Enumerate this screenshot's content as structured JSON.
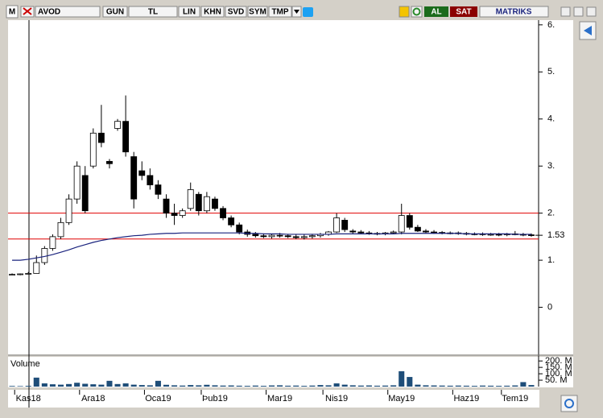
{
  "toolbar": {
    "logo": "M",
    "symbol": "AVOD",
    "buttons": [
      "GUN",
      "TL",
      "LIN",
      "KHN",
      "SVD",
      "SYM",
      "TMP"
    ],
    "buy": "AL",
    "sell": "SAT",
    "brand": "MATRIKS"
  },
  "chart_data": {
    "type": "candlestick",
    "open": [
      0.7,
      0.7,
      0.71,
      0.72,
      0.95,
      1.25,
      1.5,
      1.8,
      2.3,
      2.8,
      3.0,
      3.7,
      3.1,
      3.8,
      3.95,
      3.2,
      2.9,
      2.8,
      2.6,
      2.3,
      2.0,
      1.95,
      2.1,
      2.4,
      2.05,
      2.3,
      2.1,
      1.9,
      1.75,
      1.6,
      1.55,
      1.52,
      1.5,
      1.53,
      1.52,
      1.5,
      1.48,
      1.5,
      1.52,
      1.55,
      1.6,
      1.85,
      1.62,
      1.6,
      1.58,
      1.57,
      1.56,
      1.58,
      1.6,
      1.95,
      1.7,
      1.62,
      1.6,
      1.59,
      1.58,
      1.58,
      1.57,
      1.56,
      1.56,
      1.55,
      1.55,
      1.54,
      1.56,
      1.55,
      1.54
    ],
    "high": [
      0.72,
      0.72,
      0.75,
      1.1,
      1.3,
      1.55,
      1.9,
      2.4,
      3.1,
      3.0,
      3.8,
      4.3,
      3.15,
      4.0,
      4.5,
      3.3,
      3.1,
      2.95,
      2.7,
      2.4,
      2.2,
      2.1,
      2.65,
      2.45,
      2.45,
      2.35,
      2.15,
      1.95,
      1.8,
      1.65,
      1.6,
      1.57,
      1.56,
      1.58,
      1.56,
      1.55,
      1.54,
      1.56,
      1.58,
      1.62,
      2.0,
      1.9,
      1.66,
      1.64,
      1.62,
      1.6,
      1.6,
      1.63,
      2.2,
      2.0,
      1.75,
      1.66,
      1.64,
      1.62,
      1.61,
      1.61,
      1.6,
      1.59,
      1.59,
      1.58,
      1.58,
      1.58,
      1.62,
      1.58,
      1.57
    ],
    "low": [
      0.68,
      0.68,
      0.7,
      0.72,
      0.9,
      1.2,
      1.45,
      1.75,
      2.2,
      2.0,
      2.95,
      3.4,
      2.95,
      3.75,
      3.2,
      2.1,
      2.7,
      2.5,
      2.3,
      1.9,
      1.75,
      1.9,
      2.05,
      1.95,
      2.0,
      2.05,
      1.85,
      1.7,
      1.55,
      1.5,
      1.48,
      1.47,
      1.46,
      1.48,
      1.47,
      1.45,
      1.44,
      1.46,
      1.48,
      1.52,
      1.58,
      1.6,
      1.56,
      1.55,
      1.54,
      1.53,
      1.53,
      1.55,
      1.55,
      1.65,
      1.6,
      1.57,
      1.56,
      1.55,
      1.55,
      1.54,
      1.53,
      1.53,
      1.52,
      1.52,
      1.51,
      1.51,
      1.53,
      1.51,
      1.5
    ],
    "close": [
      0.7,
      0.71,
      0.72,
      0.95,
      1.25,
      1.5,
      1.8,
      2.3,
      3.0,
      2.05,
      3.7,
      3.5,
      3.05,
      3.95,
      3.3,
      2.3,
      2.8,
      2.6,
      2.4,
      2.0,
      1.95,
      2.05,
      2.5,
      2.05,
      2.35,
      2.1,
      1.9,
      1.75,
      1.6,
      1.55,
      1.52,
      1.5,
      1.53,
      1.52,
      1.5,
      1.48,
      1.5,
      1.52,
      1.55,
      1.6,
      1.9,
      1.65,
      1.6,
      1.58,
      1.57,
      1.56,
      1.58,
      1.6,
      1.95,
      1.7,
      1.62,
      1.6,
      1.59,
      1.58,
      1.58,
      1.57,
      1.56,
      1.56,
      1.55,
      1.55,
      1.54,
      1.56,
      1.55,
      1.54,
      1.53
    ],
    "moving_average": [
      1.0,
      1.0,
      1.02,
      1.05,
      1.08,
      1.12,
      1.17,
      1.22,
      1.28,
      1.33,
      1.38,
      1.42,
      1.45,
      1.48,
      1.5,
      1.52,
      1.53,
      1.55,
      1.56,
      1.57,
      1.57,
      1.58,
      1.58,
      1.58,
      1.58,
      1.58,
      1.58,
      1.58,
      1.58,
      1.57,
      1.57,
      1.56,
      1.56,
      1.56,
      1.55,
      1.55,
      1.55,
      1.55,
      1.55,
      1.55,
      1.56,
      1.56,
      1.56,
      1.56,
      1.56,
      1.56,
      1.56,
      1.56,
      1.57,
      1.57,
      1.57,
      1.57,
      1.57,
      1.57,
      1.57,
      1.57,
      1.56,
      1.56,
      1.56,
      1.56,
      1.56,
      1.56,
      1.55,
      1.55,
      1.55
    ],
    "volume": [
      5,
      4,
      6,
      70,
      25,
      18,
      15,
      20,
      30,
      22,
      18,
      15,
      45,
      20,
      25,
      15,
      12,
      10,
      45,
      14,
      10,
      8,
      12,
      10,
      14,
      10,
      8,
      9,
      7,
      6,
      8,
      6,
      9,
      10,
      7,
      8,
      6,
      8,
      12,
      10,
      25,
      15,
      10,
      8,
      9,
      7,
      8,
      10,
      120,
      75,
      15,
      10,
      9,
      8,
      7,
      8,
      7,
      6,
      8,
      7,
      6,
      7,
      9,
      35,
      12
    ],
    "volume_label": "Volume",
    "ylim": [
      -1.0,
      6.1
    ],
    "yticks": [
      {
        "value": 6,
        "label": "6."
      },
      {
        "value": 5,
        "label": "5."
      },
      {
        "value": 4,
        "label": "4."
      },
      {
        "value": 3,
        "label": "3."
      },
      {
        "value": 2,
        "label": "2."
      },
      {
        "value": 1,
        "label": "1."
      },
      0
    ],
    "volume_ylim": [
      0,
      220
    ],
    "volume_yticks": [
      {
        "value": 200,
        "label": "200. M"
      },
      {
        "value": 150,
        "label": "150. M"
      },
      {
        "value": 100,
        "label": "100. M"
      },
      {
        "value": 50,
        "label": "50. M"
      }
    ],
    "xticks": [
      {
        "value": 2,
        "label": "Kas18"
      },
      {
        "value": 10,
        "label": "Ara18"
      },
      {
        "value": 18,
        "label": "Oca19"
      },
      {
        "value": 25,
        "label": "Þub19"
      },
      {
        "value": 33,
        "label": "Mar19"
      },
      {
        "value": 40,
        "label": "Nis19"
      },
      {
        "value": 48,
        "label": "May19"
      },
      {
        "value": 56,
        "label": "Haz19"
      },
      {
        "value": 62,
        "label": "Tem19"
      }
    ],
    "levels": [
      2.0,
      1.45
    ],
    "level_color": "#e00000",
    "ma_color": "#1a237e",
    "volume_color": "#1f4e79",
    "last_price": 1.53
  }
}
